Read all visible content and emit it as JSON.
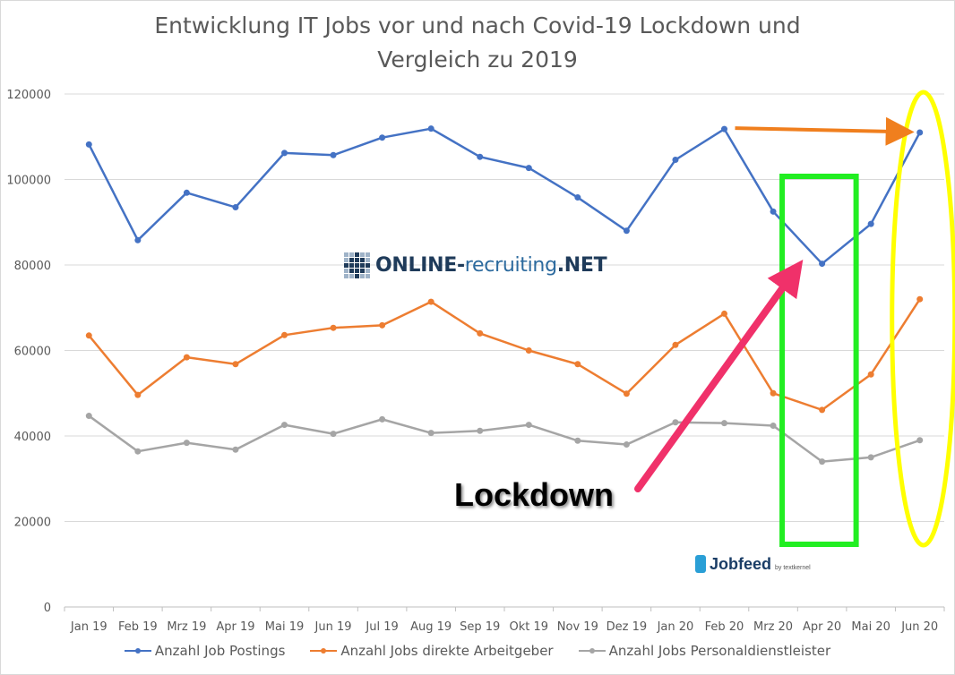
{
  "chart_data": {
    "type": "line",
    "title_lines": [
      "Entwicklung IT Jobs vor und nach Covid-19 Lockdown und",
      "Vergleich zu 2019"
    ],
    "categories": [
      "Jan 19",
      "Feb 19",
      "Mrz 19",
      "Apr 19",
      "Mai 19",
      "Jun 19",
      "Jul 19",
      "Aug 19",
      "Sep 19",
      "Okt 19",
      "Nov 19",
      "Dez 19",
      "Jan 20",
      "Feb 20",
      "Mrz 20",
      "Apr 20",
      "Mai 20",
      "Jun 20"
    ],
    "ylim": [
      0,
      120000
    ],
    "yticks": [
      0,
      20000,
      40000,
      60000,
      80000,
      100000,
      120000
    ],
    "ytick_labels": [
      "0",
      "20000",
      "40000",
      "60000",
      "80000",
      "100000",
      "120000"
    ],
    "grid": true,
    "legend_position": "bottom",
    "series": [
      {
        "name": "Anzahl Job Postings",
        "color": "#4472c4",
        "values": [
          108200,
          85800,
          96900,
          93500,
          106200,
          105700,
          109800,
          111900,
          105300,
          102700,
          95800,
          88000,
          104600,
          111800,
          92500,
          80300,
          89600,
          111000
        ]
      },
      {
        "name": "Anzahl Jobs direkte Arbeitgeber",
        "color": "#ed7d31",
        "values": [
          63500,
          49600,
          58400,
          56800,
          63600,
          65300,
          65900,
          71400,
          64000,
          60000,
          56800,
          49900,
          61300,
          68600,
          50000,
          46100,
          54400,
          72000
        ]
      },
      {
        "name": "Anzahl Jobs Personaldienstleister",
        "color": "#a5a5a5",
        "values": [
          44700,
          36400,
          38400,
          36800,
          42600,
          40500,
          43900,
          40700,
          41200,
          42600,
          38900,
          38000,
          43200,
          43000,
          42400,
          34000,
          35000,
          39000
        ]
      }
    ],
    "annotations": {
      "lockdown_label": "Lockdown",
      "lockdown_box": {
        "from": "Mrz 20",
        "to": "Apr 20",
        "color": "#22ee22"
      },
      "highlight_ellipse": {
        "at": "Jun 20",
        "color": "#ffff00"
      },
      "orange_arrow": {
        "from": "Feb 20",
        "to": "Jun 20",
        "color": "#f07f1e"
      },
      "pink_arrow": {
        "to": "Apr 20",
        "color": "#f0316a"
      }
    }
  },
  "logos": {
    "online_recruiting": {
      "main": "ONLINE-",
      "light": "recruiting",
      "tail": ".NET"
    },
    "jobfeed": {
      "name": "Jobfeed",
      "sub": "by textkernel"
    }
  }
}
